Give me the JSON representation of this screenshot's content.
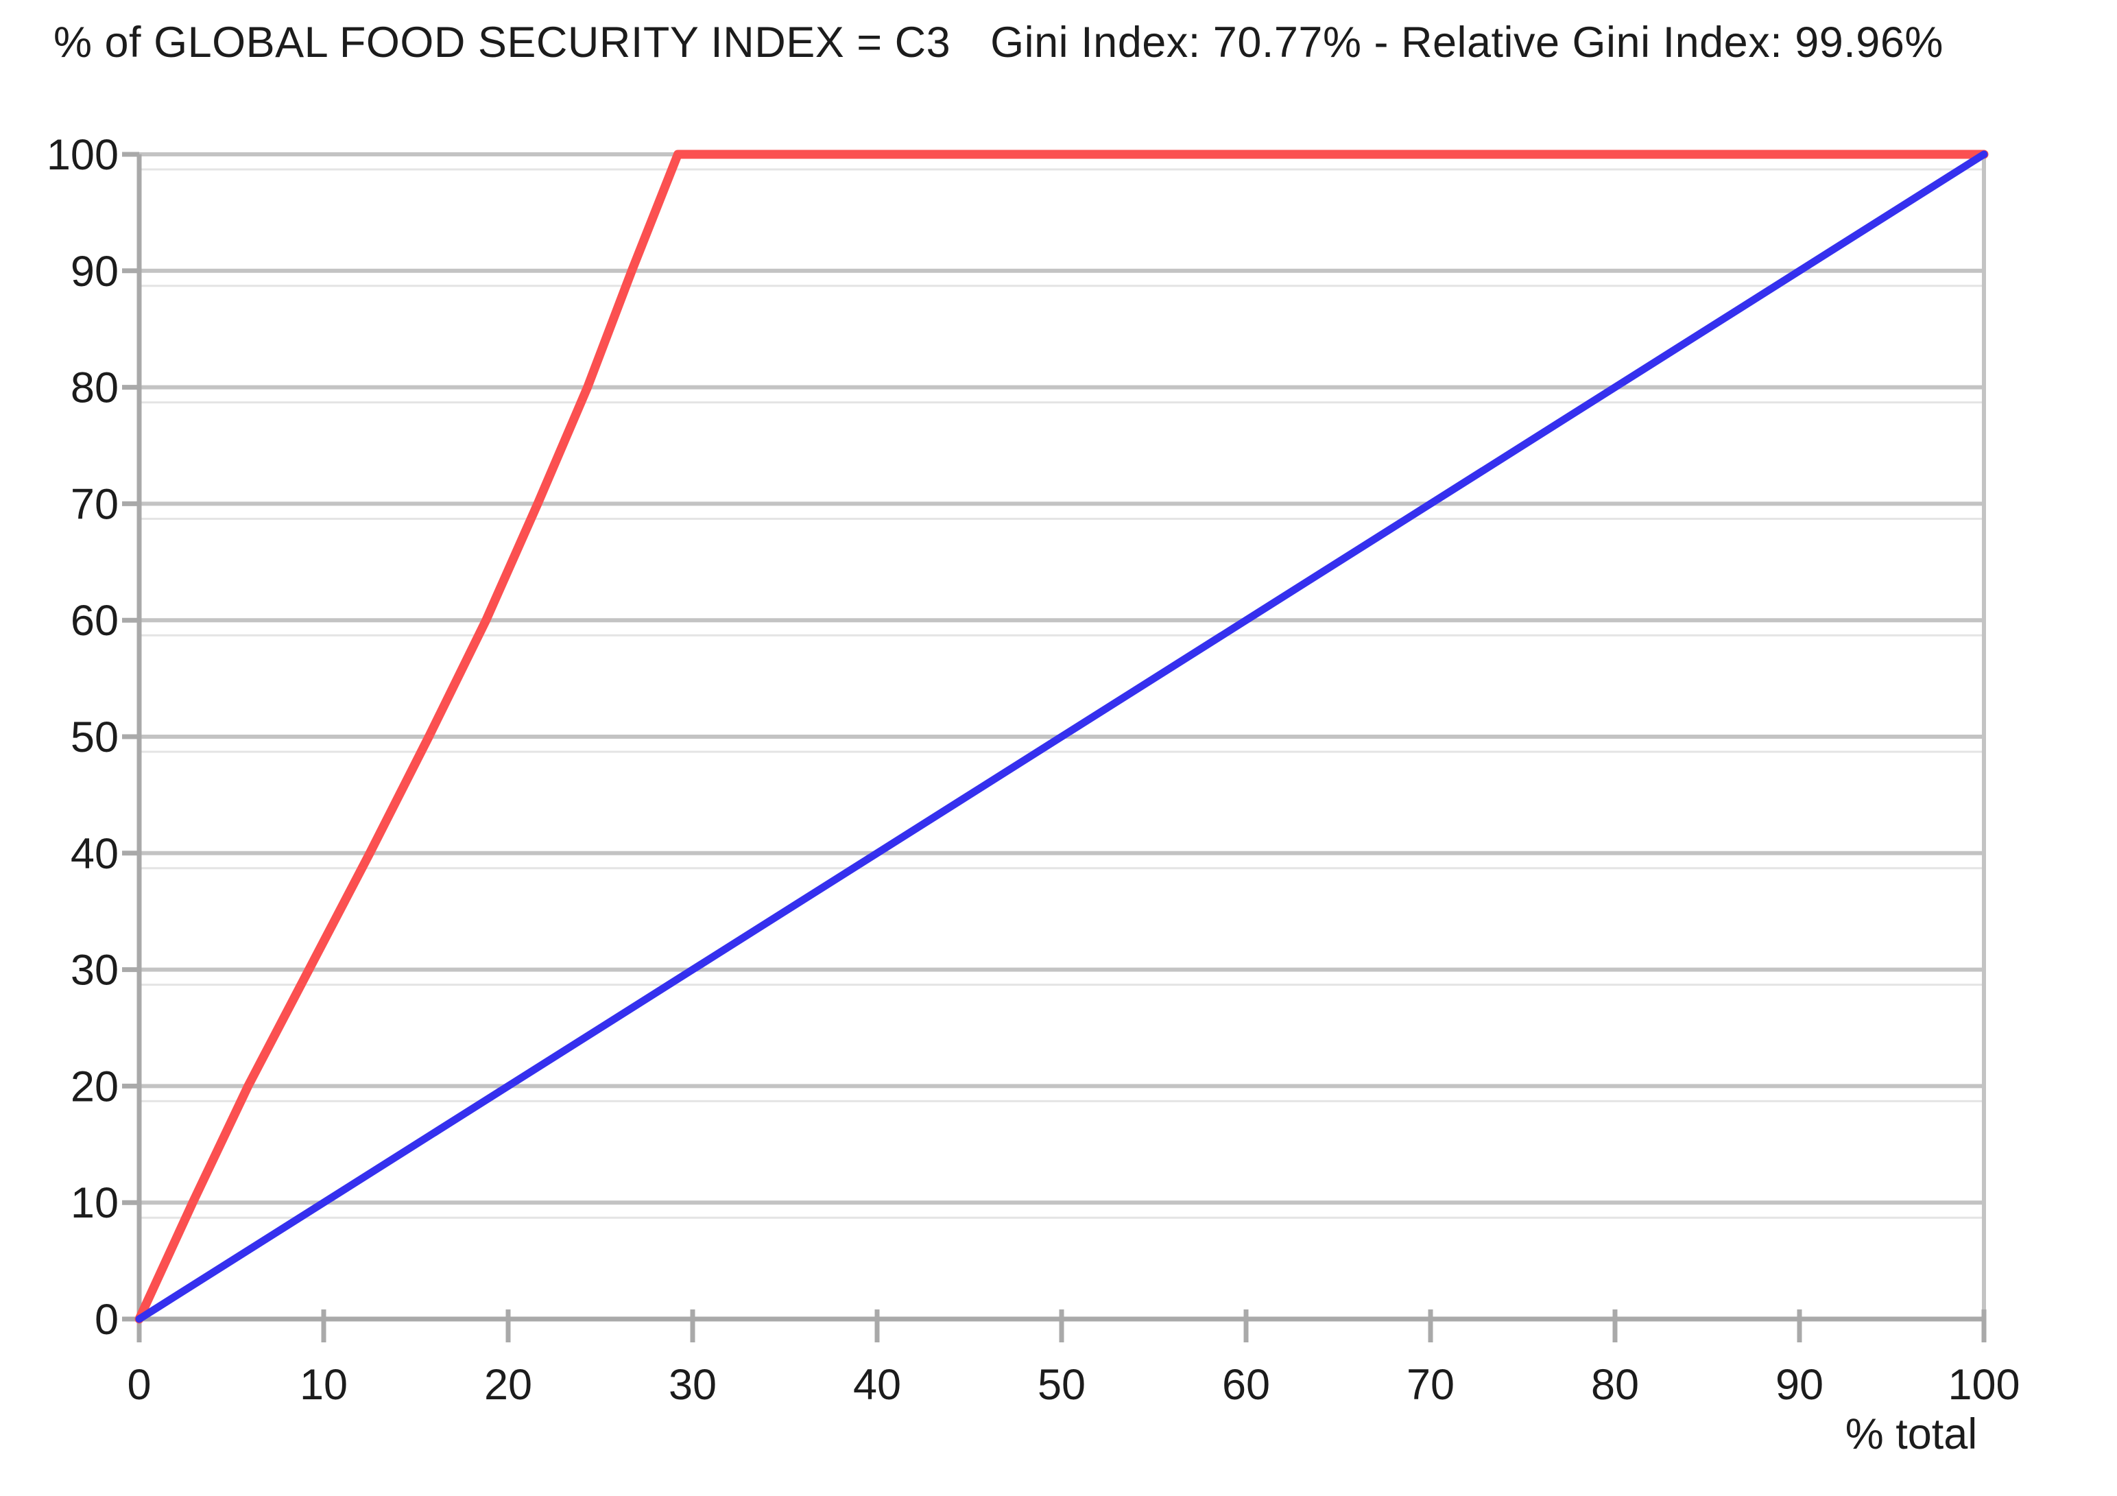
{
  "title": {
    "main": "% of GLOBAL FOOD SECURITY INDEX = C3",
    "stats": "Gini Index: 70.77% - Relative Gini Index: 99.96%"
  },
  "stats": {
    "gini_index": "70.77%",
    "relative_gini_index": "99.96%"
  },
  "chart_data": {
    "type": "line",
    "title": "% of GLOBAL FOOD SECURITY INDEX = C3",
    "subtitle": "Gini Index: 70.77% - Relative Gini Index: 99.96%",
    "xlabel": "% total",
    "ylabel": "",
    "xlim": [
      0,
      100
    ],
    "ylim": [
      0,
      100
    ],
    "x_ticks": [
      0,
      10,
      20,
      30,
      40,
      50,
      60,
      70,
      80,
      90,
      100
    ],
    "y_ticks": [
      0,
      10,
      20,
      30,
      40,
      50,
      60,
      70,
      80,
      90,
      100
    ],
    "grid": "horizontal",
    "legend_position": "none",
    "series": [
      {
        "name": "concentration-curve",
        "color": "#fb5050",
        "points": [
          [
            0,
            0
          ],
          [
            2.9,
            10
          ],
          [
            5.9,
            20
          ],
          [
            9.2,
            30
          ],
          [
            12.5,
            40
          ],
          [
            15.7,
            50
          ],
          [
            18.8,
            60
          ],
          [
            21.6,
            70
          ],
          [
            24.3,
            80
          ],
          [
            26.7,
            90
          ],
          [
            29.2,
            100
          ],
          [
            100,
            100
          ]
        ]
      },
      {
        "name": "equality-line",
        "color": "#3530ee",
        "points": [
          [
            0,
            0
          ],
          [
            100,
            100
          ]
        ]
      }
    ],
    "colors": {
      "gridline": "#c3c3c3",
      "gridline_echo": "#e4e4e4",
      "axis": "#a9a9a9",
      "tick": "#a9a9a9",
      "label": "#1c1c1c"
    }
  }
}
